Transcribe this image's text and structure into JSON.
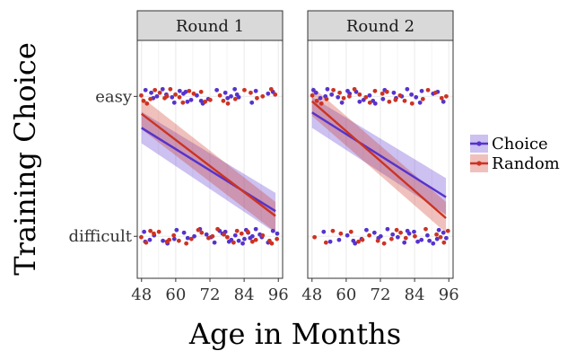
{
  "chart_data": {
    "type": "scatter",
    "panels": [
      {
        "label": "Round 1",
        "series": [
          {
            "name": "Choice",
            "color": "#5533cc",
            "fit": {
              "x": [
                48,
                95
              ],
              "y": [
                1.55,
                0.36
              ],
              "band_lower": [
                1.33,
                0.05
              ],
              "band_upper": [
                1.78,
                0.62
              ]
            },
            "points_easy": [
              49.4,
              51.4,
              52.1,
              53.4,
              55.4,
              56.7,
              58.7,
              59.5,
              61.4,
              62.7,
              63.5,
              64.1,
              65.4,
              67.4,
              68.9,
              69.5,
              71.4,
              74.4,
              77.4,
              78.2,
              79.4,
              80.7,
              81.5,
              82.1,
              86.7,
              88.1,
              92.4,
              94.1
            ],
            "points_difficult": [
              48.9,
              49.3,
              50.9,
              52.4,
              55.5,
              57.1,
              59.5,
              60.3,
              62.9,
              64.2,
              66.5,
              68.5,
              70.8,
              72.4,
              73.6,
              75.4,
              76.4,
              77.4,
              78.7,
              79.5,
              80.9,
              82.1,
              83.5,
              84.1,
              84.7,
              85.4,
              86.1,
              86.9,
              88.1,
              89.5,
              90.2,
              92.4,
              94.1,
              95.6
            ]
          },
          {
            "name": "Random",
            "color": "#cc3322",
            "fit": {
              "x": [
                48,
                95
              ],
              "y": [
                1.75,
                0.29
              ],
              "band_lower": [
                1.53,
                0.06
              ],
              "band_upper": [
                1.99,
                0.49
              ]
            },
            "points_easy": [
              47.9,
              48.7,
              49.9,
              51.1,
              52.7,
              54.4,
              56.1,
              56.9,
              58.1,
              59.9,
              61.3,
              62.5,
              64.7,
              66.3,
              68.9,
              70.3,
              72.1,
              75.5,
              76.7,
              78.3,
              80.9,
              84.1,
              86.3,
              88.5,
              90.5,
              93.5,
              94.9
            ],
            "points_difficult": [
              47.9,
              49.6,
              51.1,
              52.3,
              54.1,
              56.9,
              57.7,
              59.3,
              61.1,
              63.7,
              65.5,
              67.9,
              69.1,
              71.5,
              72.9,
              74.7,
              76.9,
              78.1,
              80.3,
              81.5,
              83.1,
              85.3,
              86.9,
              88.1,
              90.5,
              92.9,
              93.7,
              95.5
            ]
          }
        ]
      },
      {
        "label": "Round 2",
        "series": [
          {
            "name": "Choice",
            "color": "#5533cc",
            "fit": {
              "x": [
                48,
                95
              ],
              "y": [
                1.77,
                0.56
              ],
              "band_lower": [
                1.55,
                0.31
              ],
              "band_upper": [
                1.99,
                0.83
              ]
            },
            "points_easy": [
              48.5,
              49.4,
              50.9,
              52.7,
              53.4,
              54.9,
              57.1,
              58.5,
              60.5,
              61.2,
              63.5,
              64.7,
              66.1,
              68.2,
              69.4,
              70.2,
              72.9,
              73.5,
              76.7,
              77.5,
              79.5,
              81.4,
              82.9,
              84.5,
              85.9,
              86.5,
              90.5,
              92.1,
              94.1
            ],
            "points_difficult": [
              52.1,
              54.4,
              57.5,
              60.4,
              62.5,
              63.1,
              65.4,
              67.1,
              69.9,
              71.3,
              72.1,
              74.5,
              76.3,
              78.1,
              80.4,
              81.5,
              82.1,
              83.8,
              85.1,
              86.4,
              88.5,
              89.2,
              90.5,
              91.9,
              92.5,
              94.1,
              95.1
            ]
          },
          {
            "name": "Random",
            "color": "#cc3322",
            "fit": {
              "x": [
                48,
                95
              ],
              "y": [
                1.93,
                0.26
              ],
              "band_lower": [
                1.72,
                0.05
              ],
              "band_upper": [
                2.14,
                0.49
              ]
            },
            "points_easy": [
              48.1,
              49.7,
              51.3,
              53.1,
              55.5,
              57.7,
              59.1,
              61.1,
              62.9,
              64.7,
              66.9,
              68.3,
              70.1,
              72.7,
              74.3,
              75.1,
              77.3,
              78.9,
              80.5,
              83.1,
              86.9,
              88.7,
              91.3,
              93.5,
              95.1
            ],
            "points_difficult": [
              48.9,
              52.9,
              55.3,
              58.1,
              61.7,
              64.3,
              65.7,
              68.1,
              71.1,
              73.3,
              75.9,
              77.7,
              79.1,
              80.9,
              84.1,
              87.9,
              91.7,
              93.1,
              94.3,
              95.7
            ]
          }
        ]
      }
    ],
    "xlabel": "Age in Months",
    "ylabel": "Training Choice",
    "xticks": [
      48,
      60,
      72,
      84,
      96
    ],
    "xlim": [
      46.5,
      97.5
    ],
    "yticks": [
      {
        "label": "easy",
        "value": 2
      },
      {
        "label": "difficult",
        "value": 0
      }
    ],
    "ylim": [
      -0.6,
      2.8
    ],
    "legend": {
      "position": "right",
      "entries": [
        "Choice",
        "Random"
      ]
    },
    "grid": true,
    "background": "#ffffff",
    "grid_color": "#ebebeb",
    "strip_fill": "#d9d9d9"
  }
}
